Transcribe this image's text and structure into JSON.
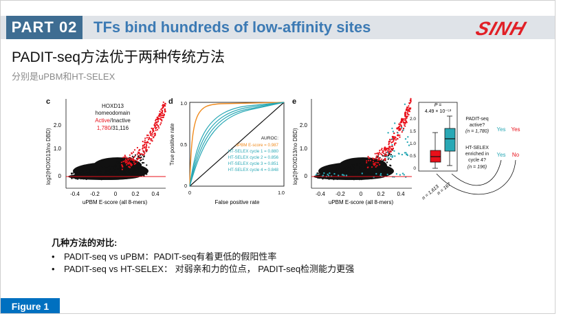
{
  "header": {
    "part_label": "PART 02",
    "section_title": "TFs bind hundreds of low-affinity sites",
    "logo_text": "SINH"
  },
  "slide": {
    "title": "PADIT-seq方法优于两种传统方法",
    "subtitle": "分别是uPBM和HT-SELEX"
  },
  "colors": {
    "active_red": "#e8101a",
    "inactive_black": "#111111",
    "uPBM_orange": "#f08a1c",
    "ht_selex_teal": "#29a8b5",
    "header_blue": "#3c7ab4",
    "badge_blue": "#3e6d92",
    "logo_red": "#e11f26",
    "figure_badge": "#0070c0"
  },
  "figure": {
    "panel_c": {
      "letter": "c",
      "ylabel": "log2(HOXD13/no DBD)",
      "xlabel": "uPBM E-score (all 8-mers)",
      "x_ticks": [
        "-0.4",
        "-0.2",
        "0",
        "0.2",
        "0.4"
      ],
      "y_ticks": [
        "0",
        "1.0",
        "2.0"
      ],
      "legend_line1": "HOXD13",
      "legend_line2": "homeodomain",
      "legend_active": "Active",
      "legend_sep": "/",
      "legend_inactive": "Inactive",
      "count_active": "1,780",
      "count_sep": "/",
      "count_total": "31,116"
    },
    "panel_d": {
      "letter": "d",
      "ylabel": "True positive rate",
      "xlabel": "False positive rate",
      "x_ticks": [
        "0",
        "1.0"
      ],
      "y_ticks": [
        "0",
        "0.5",
        "1.0"
      ],
      "legend_title": "AUROC:",
      "legend_entries": [
        "uPBM E-score = 0.987",
        "HT-SELEX cycle 1 = 0.880",
        "HT-SELEX cycle 2 = 0.856",
        "HT-SELEX cycle 3 = 0.851",
        "HT-SELEX cycle 4 = 0.848"
      ]
    },
    "panel_e": {
      "letter": "e",
      "ylabel": "log2(HOXD13/no DBD)",
      "xlabel": "uPBM E-score (all 8-mers)",
      "x_ticks": [
        "-0.4",
        "-0.2",
        "0",
        "0.2",
        "0.4"
      ],
      "y_ticks": [
        "0",
        "1.0",
        "2.0"
      ],
      "box_y_ticks": [
        "0",
        "0.5",
        "1.0",
        "1.5",
        "2.0"
      ],
      "p_label": "P =",
      "p_value": "4.49 × 10⁻⁵³",
      "n_left": "n = 1,613",
      "n_right": "n = 167",
      "q1_line1": "PADIT-seq",
      "q1_line2": "active?",
      "q1_line3": "(n = 1,780)",
      "q2_line1": "HT-SELEX",
      "q2_line2": "enriched in",
      "q2_line3": "cycle 4?",
      "q2_line4": "(n = 196)",
      "ans_yes_1": "Yes",
      "ans_yes_2": "Yes",
      "ans_yes_3": "Yes",
      "ans_no": "No"
    }
  },
  "notes": {
    "heading": "几种方法的对比:",
    "items": [
      "PADIT-seq vs uPBM：PADIT-seq有着更低的假阳性率",
      "PADIT-seq vs HT-SELEX： 对弱亲和力的位点， PADIT-seq检测能力更强"
    ]
  },
  "footer": {
    "figure_label": "Figure 1"
  }
}
